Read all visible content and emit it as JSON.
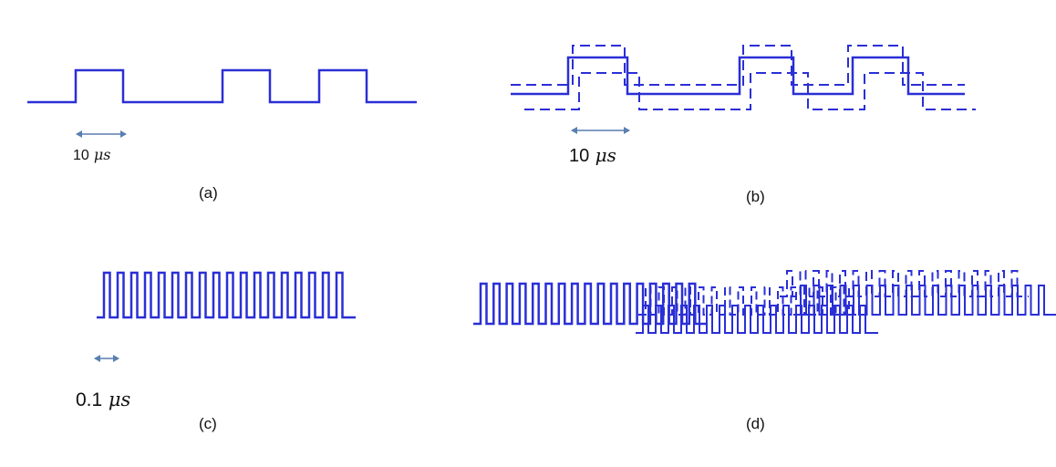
{
  "panels": {
    "a": {
      "label": "(a)",
      "scale": {
        "value": "10",
        "unit": "μs"
      }
    },
    "b": {
      "label": "(b)",
      "scale": {
        "value": "10",
        "unit": "μs"
      }
    },
    "c": {
      "label": "(c)",
      "scale": {
        "value": "0.1",
        "unit": "μs"
      }
    },
    "d": {
      "label": "(d)"
    }
  },
  "colors": {
    "signal": "#2a2fd6",
    "scale_arrow": "#5a7fb0",
    "text": "#111111"
  }
}
